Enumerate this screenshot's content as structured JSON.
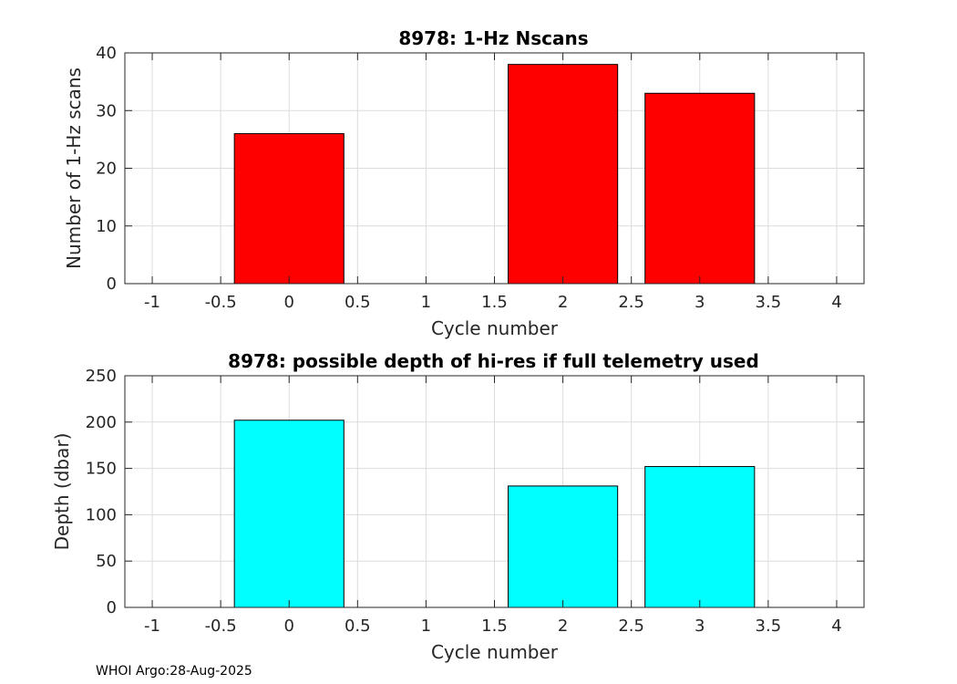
{
  "chart_data": [
    {
      "type": "bar",
      "title": "8978: 1-Hz Nscans",
      "xlabel": "Cycle number",
      "ylabel": "Number of 1-Hz scans",
      "x": [
        0,
        2,
        3
      ],
      "values": [
        26,
        38,
        33
      ],
      "bar_width": 0.8,
      "color": "#ff0000",
      "xlim": [
        -1.2,
        4.2
      ],
      "ylim": [
        0,
        40
      ],
      "xticks": [
        -1,
        -0.5,
        0,
        0.5,
        1,
        1.5,
        2,
        2.5,
        3,
        3.5,
        4
      ],
      "xtick_labels": [
        "-1",
        "-0.5",
        "0",
        "0.5",
        "1",
        "1.5",
        "2",
        "2.5",
        "3",
        "3.5",
        "4"
      ],
      "yticks": [
        0,
        10,
        20,
        30,
        40
      ],
      "ytick_labels": [
        "0",
        "10",
        "20",
        "30",
        "40"
      ],
      "grid": true
    },
    {
      "type": "bar",
      "title": "8978: possible depth of hi-res if full telemetry used",
      "xlabel": "Cycle number",
      "ylabel": "Depth (dbar)",
      "x": [
        0,
        2,
        3
      ],
      "values": [
        202,
        131,
        152
      ],
      "bar_width": 0.8,
      "color": "#00ffff",
      "xlim": [
        -1.2,
        4.2
      ],
      "ylim": [
        0,
        250
      ],
      "xticks": [
        -1,
        -0.5,
        0,
        0.5,
        1,
        1.5,
        2,
        2.5,
        3,
        3.5,
        4
      ],
      "xtick_labels": [
        "-1",
        "-0.5",
        "0",
        "0.5",
        "1",
        "1.5",
        "2",
        "2.5",
        "3",
        "3.5",
        "4"
      ],
      "yticks": [
        0,
        50,
        100,
        150,
        200,
        250
      ],
      "ytick_labels": [
        "0",
        "50",
        "100",
        "150",
        "200",
        "250"
      ],
      "grid": true
    }
  ],
  "footer": "WHOI Argo:28-Aug-2025"
}
